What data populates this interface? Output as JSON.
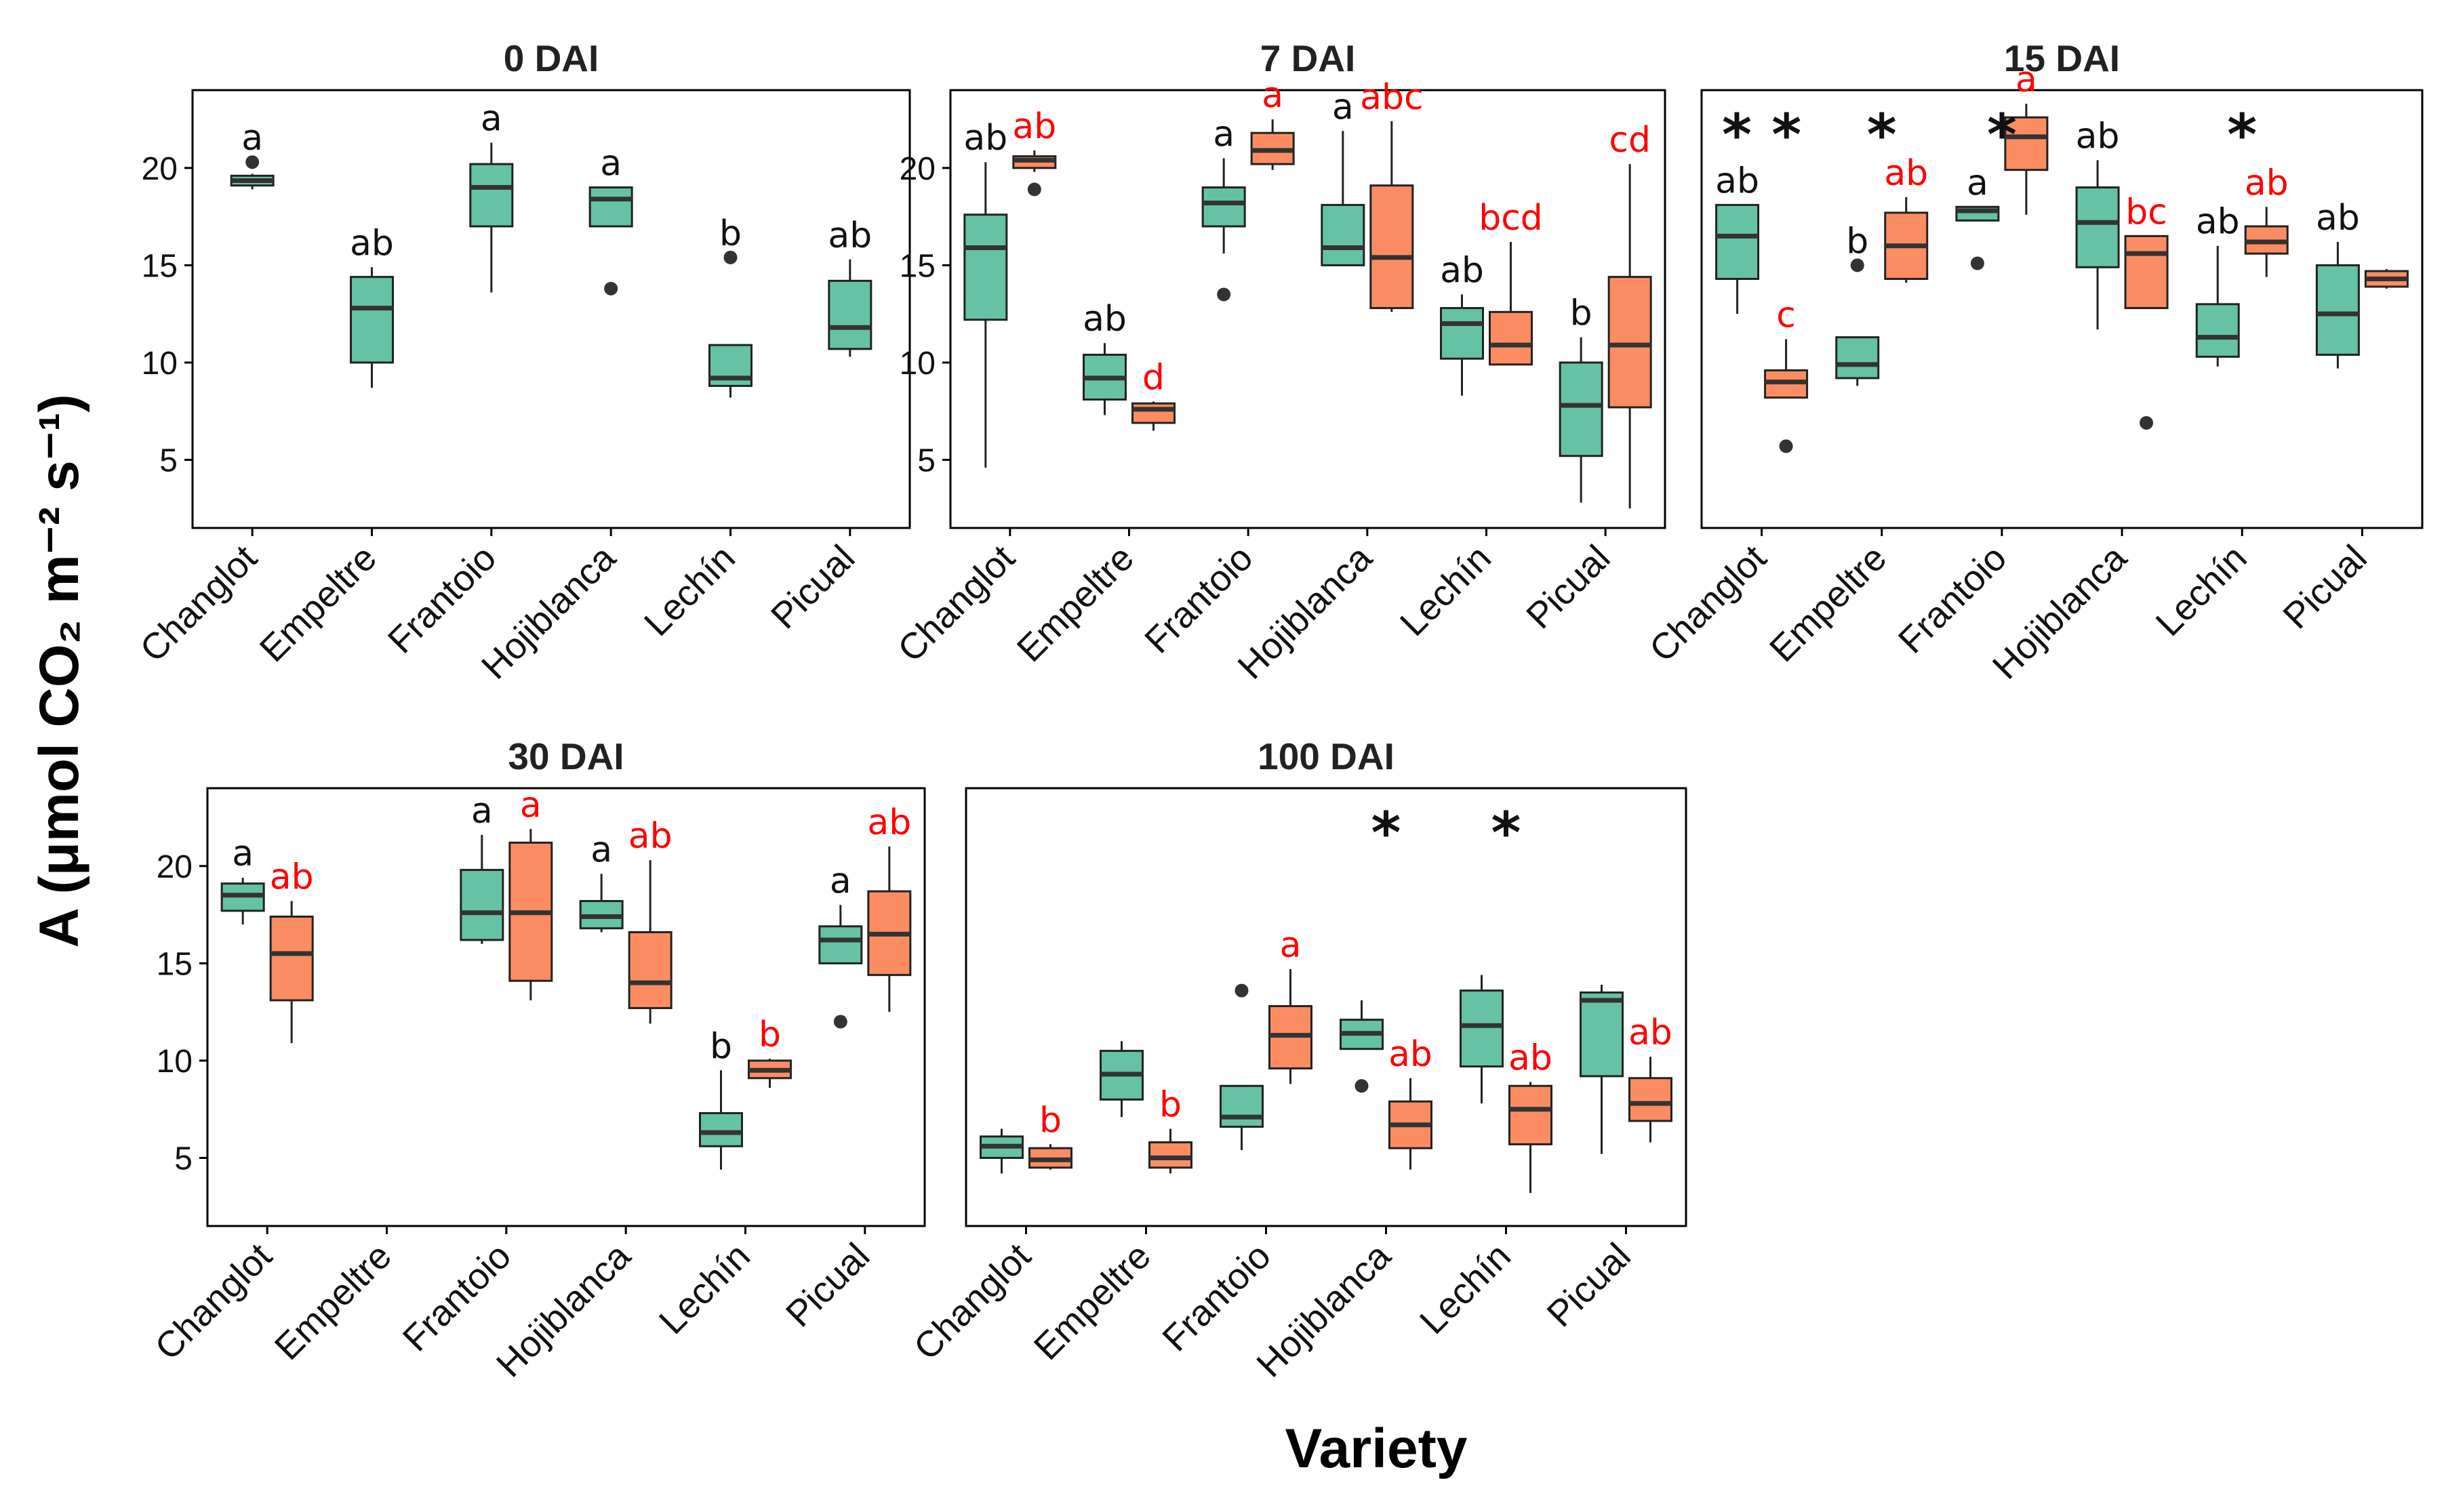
{
  "colors": {
    "green": "#66c2a5",
    "orange": "#fc8d62",
    "letter_green": "#111111",
    "letter_orange": "#ff0000"
  },
  "x_label": "Variety",
  "y_label": "A (μmol CO₂ m⁻² s⁻¹)",
  "chart_data": [
    {
      "type": "box",
      "title": "0 DAI",
      "categories": [
        "Changlot",
        "Empeltre",
        "Frantoio",
        "Hojiblanca",
        "Lechín",
        "Picual"
      ],
      "ylim": [
        1.5,
        24
      ],
      "yticks": [
        5,
        10,
        15,
        20
      ],
      "stars": [],
      "series": [
        {
          "name": "green",
          "boxes": [
            {
              "cat": "Changlot",
              "q1": 19.1,
              "med": 19.35,
              "q3": 19.6,
              "lo": 18.9,
              "hi": 19.7,
              "out": [
                20.3
              ],
              "letter": "a"
            },
            {
              "cat": "Empeltre",
              "q1": 10.0,
              "med": 12.8,
              "q3": 14.4,
              "lo": 8.7,
              "hi": 14.9,
              "out": [],
              "letter": "ab"
            },
            {
              "cat": "Frantoio",
              "q1": 17.0,
              "med": 19.0,
              "q3": 20.2,
              "lo": 13.6,
              "hi": 21.3,
              "out": [],
              "letter": "a"
            },
            {
              "cat": "Hojiblanca",
              "q1": 17.0,
              "med": 18.4,
              "q3": 19.0,
              "lo": 17.0,
              "hi": 19.0,
              "out": [
                13.8
              ],
              "letter": "a"
            },
            {
              "cat": "Lechín",
              "q1": 8.8,
              "med": 9.2,
              "q3": 10.9,
              "lo": 8.2,
              "hi": 10.9,
              "out": [
                15.4
              ],
              "letter": "b"
            },
            {
              "cat": "Picual",
              "q1": 10.7,
              "med": 11.8,
              "q3": 14.2,
              "lo": 10.3,
              "hi": 15.3,
              "out": [],
              "letter": "ab"
            }
          ]
        }
      ]
    },
    {
      "type": "box",
      "title": "7 DAI",
      "categories": [
        "Changlot",
        "Empeltre",
        "Frantoio",
        "Hojiblanca",
        "Lechín",
        "Picual"
      ],
      "ylim": [
        1.5,
        24
      ],
      "yticks": [
        5,
        10,
        15,
        20
      ],
      "stars": [],
      "series": [
        {
          "name": "green",
          "boxes": [
            {
              "cat": "Changlot",
              "q1": 12.2,
              "med": 15.9,
              "q3": 17.6,
              "lo": 4.6,
              "hi": 20.3,
              "out": [],
              "letter": "ab"
            },
            {
              "cat": "Empeltre",
              "q1": 8.1,
              "med": 9.2,
              "q3": 10.4,
              "lo": 7.3,
              "hi": 11.0,
              "out": [],
              "letter": "ab"
            },
            {
              "cat": "Frantoio",
              "q1": 17.0,
              "med": 18.2,
              "q3": 19.0,
              "lo": 15.6,
              "hi": 20.5,
              "out": [
                13.5
              ],
              "letter": "a"
            },
            {
              "cat": "Hojiblanca",
              "q1": 15.0,
              "med": 15.9,
              "q3": 18.1,
              "lo": 15.0,
              "hi": 21.9,
              "out": [],
              "letter": "a"
            },
            {
              "cat": "Lechín",
              "q1": 10.2,
              "med": 12.0,
              "q3": 12.8,
              "lo": 8.3,
              "hi": 13.5,
              "out": [],
              "letter": "ab"
            },
            {
              "cat": "Picual",
              "q1": 5.2,
              "med": 7.8,
              "q3": 10.0,
              "lo": 2.8,
              "hi": 11.3,
              "out": [],
              "letter": "b"
            }
          ]
        },
        {
          "name": "orange",
          "boxes": [
            {
              "cat": "Changlot",
              "q1": 20.0,
              "med": 20.4,
              "q3": 20.6,
              "lo": 19.8,
              "hi": 20.9,
              "out": [
                18.9
              ],
              "letter": "ab"
            },
            {
              "cat": "Empeltre",
              "q1": 6.9,
              "med": 7.6,
              "q3": 7.9,
              "lo": 6.5,
              "hi": 8.0,
              "out": [],
              "letter": "d"
            },
            {
              "cat": "Frantoio",
              "q1": 20.2,
              "med": 20.9,
              "q3": 21.8,
              "lo": 19.9,
              "hi": 22.5,
              "out": [],
              "letter": "a"
            },
            {
              "cat": "Hojiblanca",
              "q1": 12.8,
              "med": 15.4,
              "q3": 19.1,
              "lo": 12.6,
              "hi": 22.4,
              "out": [],
              "letter": "abc"
            },
            {
              "cat": "Lechín",
              "q1": 9.9,
              "med": 10.9,
              "q3": 12.6,
              "lo": 9.9,
              "hi": 16.2,
              "out": [],
              "letter": "bcd"
            },
            {
              "cat": "Picual",
              "q1": 7.7,
              "med": 10.9,
              "q3": 14.4,
              "lo": 2.5,
              "hi": 20.2,
              "out": [],
              "letter": "cd"
            }
          ]
        }
      ]
    },
    {
      "type": "box",
      "title": "15 DAI",
      "categories": [
        "Changlot",
        "Empeltre",
        "Frantoio",
        "Hojiblanca",
        "Lechín",
        "Picual"
      ],
      "ylim": [
        1.5,
        24
      ],
      "yticks": [],
      "stars": [
        {
          "cat": "Changlot",
          "text": "* *"
        },
        {
          "cat": "Empeltre",
          "text": "*"
        },
        {
          "cat": "Frantoio",
          "text": "*"
        },
        {
          "cat": "Lechín",
          "text": "*"
        }
      ],
      "series": [
        {
          "name": "green",
          "boxes": [
            {
              "cat": "Changlot",
              "q1": 14.3,
              "med": 16.5,
              "q3": 18.1,
              "lo": 12.5,
              "hi": 18.1,
              "out": [],
              "letter": "ab"
            },
            {
              "cat": "Empeltre",
              "q1": 9.2,
              "med": 9.9,
              "q3": 11.3,
              "lo": 8.8,
              "hi": 11.3,
              "out": [
                15.0
              ],
              "letter": "b"
            },
            {
              "cat": "Frantoio",
              "q1": 17.3,
              "med": 17.8,
              "q3": 18.0,
              "lo": 17.3,
              "hi": 18.0,
              "out": [
                15.1
              ],
              "letter": "a"
            },
            {
              "cat": "Hojiblanca",
              "q1": 14.9,
              "med": 17.2,
              "q3": 19.0,
              "lo": 11.7,
              "hi": 20.4,
              "out": [],
              "letter": "ab"
            },
            {
              "cat": "Lechín",
              "q1": 10.3,
              "med": 11.3,
              "q3": 13.0,
              "lo": 9.8,
              "hi": 16.0,
              "out": [],
              "letter": "ab"
            },
            {
              "cat": "Picual",
              "q1": 10.4,
              "med": 12.5,
              "q3": 15.0,
              "lo": 9.7,
              "hi": 16.2,
              "out": [],
              "letter": "ab"
            }
          ]
        },
        {
          "name": "orange",
          "boxes": [
            {
              "cat": "Changlot",
              "q1": 8.2,
              "med": 9.0,
              "q3": 9.6,
              "lo": 8.2,
              "hi": 11.2,
              "out": [
                5.7
              ],
              "letter": "c"
            },
            {
              "cat": "Empeltre",
              "q1": 14.3,
              "med": 16.0,
              "q3": 17.7,
              "lo": 14.1,
              "hi": 18.5,
              "out": [],
              "letter": "ab"
            },
            {
              "cat": "Frantoio",
              "q1": 19.9,
              "med": 21.6,
              "q3": 22.6,
              "lo": 17.6,
              "hi": 23.3,
              "out": [],
              "letter": "a"
            },
            {
              "cat": "Hojiblanca",
              "q1": 12.8,
              "med": 15.6,
              "q3": 16.5,
              "lo": 12.8,
              "hi": 16.5,
              "out": [
                6.9
              ],
              "letter": "bc"
            },
            {
              "cat": "Lechín",
              "q1": 15.6,
              "med": 16.2,
              "q3": 17.0,
              "lo": 14.4,
              "hi": 18.0,
              "out": [],
              "letter": "ab"
            },
            {
              "cat": "Picual",
              "q1": 13.9,
              "med": 14.3,
              "q3": 14.7,
              "lo": 13.8,
              "hi": 14.8,
              "out": [],
              "letter": ""
            }
          ]
        }
      ]
    },
    {
      "type": "box",
      "title": "30 DAI",
      "categories": [
        "Changlot",
        "Empeltre",
        "Frantoio",
        "Hojiblanca",
        "Lechín",
        "Picual"
      ],
      "ylim": [
        1.5,
        24
      ],
      "yticks": [
        5,
        10,
        15,
        20
      ],
      "stars": [],
      "series": [
        {
          "name": "green",
          "boxes": [
            {
              "cat": "Changlot",
              "q1": 17.7,
              "med": 18.5,
              "q3": 19.1,
              "lo": 17.0,
              "hi": 19.4,
              "out": [],
              "letter": "a"
            },
            {
              "cat": "Frantoio",
              "q1": 16.2,
              "med": 17.6,
              "q3": 19.8,
              "lo": 16.0,
              "hi": 21.6,
              "out": [],
              "letter": "a"
            },
            {
              "cat": "Hojiblanca",
              "q1": 16.8,
              "med": 17.4,
              "q3": 18.2,
              "lo": 16.6,
              "hi": 19.6,
              "out": [],
              "letter": "a"
            },
            {
              "cat": "Lechín",
              "q1": 5.6,
              "med": 6.3,
              "q3": 7.3,
              "lo": 4.4,
              "hi": 9.5,
              "out": [],
              "letter": "b"
            },
            {
              "cat": "Picual",
              "q1": 15.0,
              "med": 16.2,
              "q3": 16.9,
              "lo": 15.0,
              "hi": 18.0,
              "out": [
                12.0
              ],
              "letter": "a"
            }
          ]
        },
        {
          "name": "orange",
          "boxes": [
            {
              "cat": "Changlot",
              "q1": 13.1,
              "med": 15.5,
              "q3": 17.4,
              "lo": 10.9,
              "hi": 18.2,
              "out": [],
              "letter": "ab"
            },
            {
              "cat": "Frantoio",
              "q1": 14.1,
              "med": 17.6,
              "q3": 21.2,
              "lo": 13.1,
              "hi": 21.9,
              "out": [],
              "letter": "a"
            },
            {
              "cat": "Hojiblanca",
              "q1": 12.7,
              "med": 14.0,
              "q3": 16.6,
              "lo": 11.9,
              "hi": 20.3,
              "out": [],
              "letter": "ab"
            },
            {
              "cat": "Lechín",
              "q1": 9.1,
              "med": 9.5,
              "q3": 10.0,
              "lo": 8.6,
              "hi": 10.1,
              "out": [],
              "letter": "b"
            },
            {
              "cat": "Picual",
              "q1": 14.4,
              "med": 16.5,
              "q3": 18.7,
              "lo": 12.5,
              "hi": 21.0,
              "out": [],
              "letter": "ab"
            }
          ]
        }
      ]
    },
    {
      "type": "box",
      "title": "100 DAI",
      "categories": [
        "Changlot",
        "Empeltre",
        "Frantoio",
        "Hojiblanca",
        "Lechín",
        "Picual"
      ],
      "ylim": [
        1.5,
        24
      ],
      "yticks": [],
      "stars": [
        {
          "cat": "Hojiblanca",
          "text": "*"
        },
        {
          "cat": "Lechín",
          "text": "*"
        }
      ],
      "series": [
        {
          "name": "green",
          "boxes": [
            {
              "cat": "Changlot",
              "q1": 5.0,
              "med": 5.6,
              "q3": 6.1,
              "lo": 4.2,
              "hi": 6.5,
              "out": [],
              "letter": ""
            },
            {
              "cat": "Empeltre",
              "q1": 8.0,
              "med": 9.3,
              "q3": 10.5,
              "lo": 7.1,
              "hi": 11.0,
              "out": [],
              "letter": ""
            },
            {
              "cat": "Frantoio",
              "q1": 6.6,
              "med": 7.1,
              "q3": 8.7,
              "lo": 5.4,
              "hi": 8.7,
              "out": [
                13.6
              ],
              "letter": ""
            },
            {
              "cat": "Hojiblanca",
              "q1": 10.6,
              "med": 11.4,
              "q3": 12.1,
              "lo": 10.6,
              "hi": 13.1,
              "out": [
                8.7
              ],
              "letter": ""
            },
            {
              "cat": "Lechín",
              "q1": 9.7,
              "med": 11.8,
              "q3": 13.6,
              "lo": 7.8,
              "hi": 14.4,
              "out": [],
              "letter": ""
            },
            {
              "cat": "Picual",
              "q1": 9.2,
              "med": 13.1,
              "q3": 13.5,
              "lo": 5.2,
              "hi": 13.9,
              "out": [],
              "letter": ""
            }
          ]
        },
        {
          "name": "orange",
          "boxes": [
            {
              "cat": "Changlot",
              "q1": 4.5,
              "med": 4.9,
              "q3": 5.5,
              "lo": 4.4,
              "hi": 5.7,
              "out": [],
              "letter": "b"
            },
            {
              "cat": "Empeltre",
              "q1": 4.5,
              "med": 5.0,
              "q3": 5.8,
              "lo": 4.2,
              "hi": 6.5,
              "out": [],
              "letter": "b"
            },
            {
              "cat": "Frantoio",
              "q1": 9.6,
              "med": 11.3,
              "q3": 12.8,
              "lo": 8.8,
              "hi": 14.7,
              "out": [],
              "letter": "a"
            },
            {
              "cat": "Hojiblanca",
              "q1": 5.5,
              "med": 6.7,
              "q3": 7.9,
              "lo": 4.4,
              "hi": 9.1,
              "out": [],
              "letter": "ab"
            },
            {
              "cat": "Lechín",
              "q1": 5.7,
              "med": 7.5,
              "q3": 8.7,
              "lo": 3.2,
              "hi": 8.9,
              "out": [],
              "letter": "ab"
            },
            {
              "cat": "Picual",
              "q1": 6.9,
              "med": 7.8,
              "q3": 9.1,
              "lo": 5.8,
              "hi": 10.2,
              "out": [],
              "letter": "ab"
            }
          ]
        }
      ]
    }
  ]
}
